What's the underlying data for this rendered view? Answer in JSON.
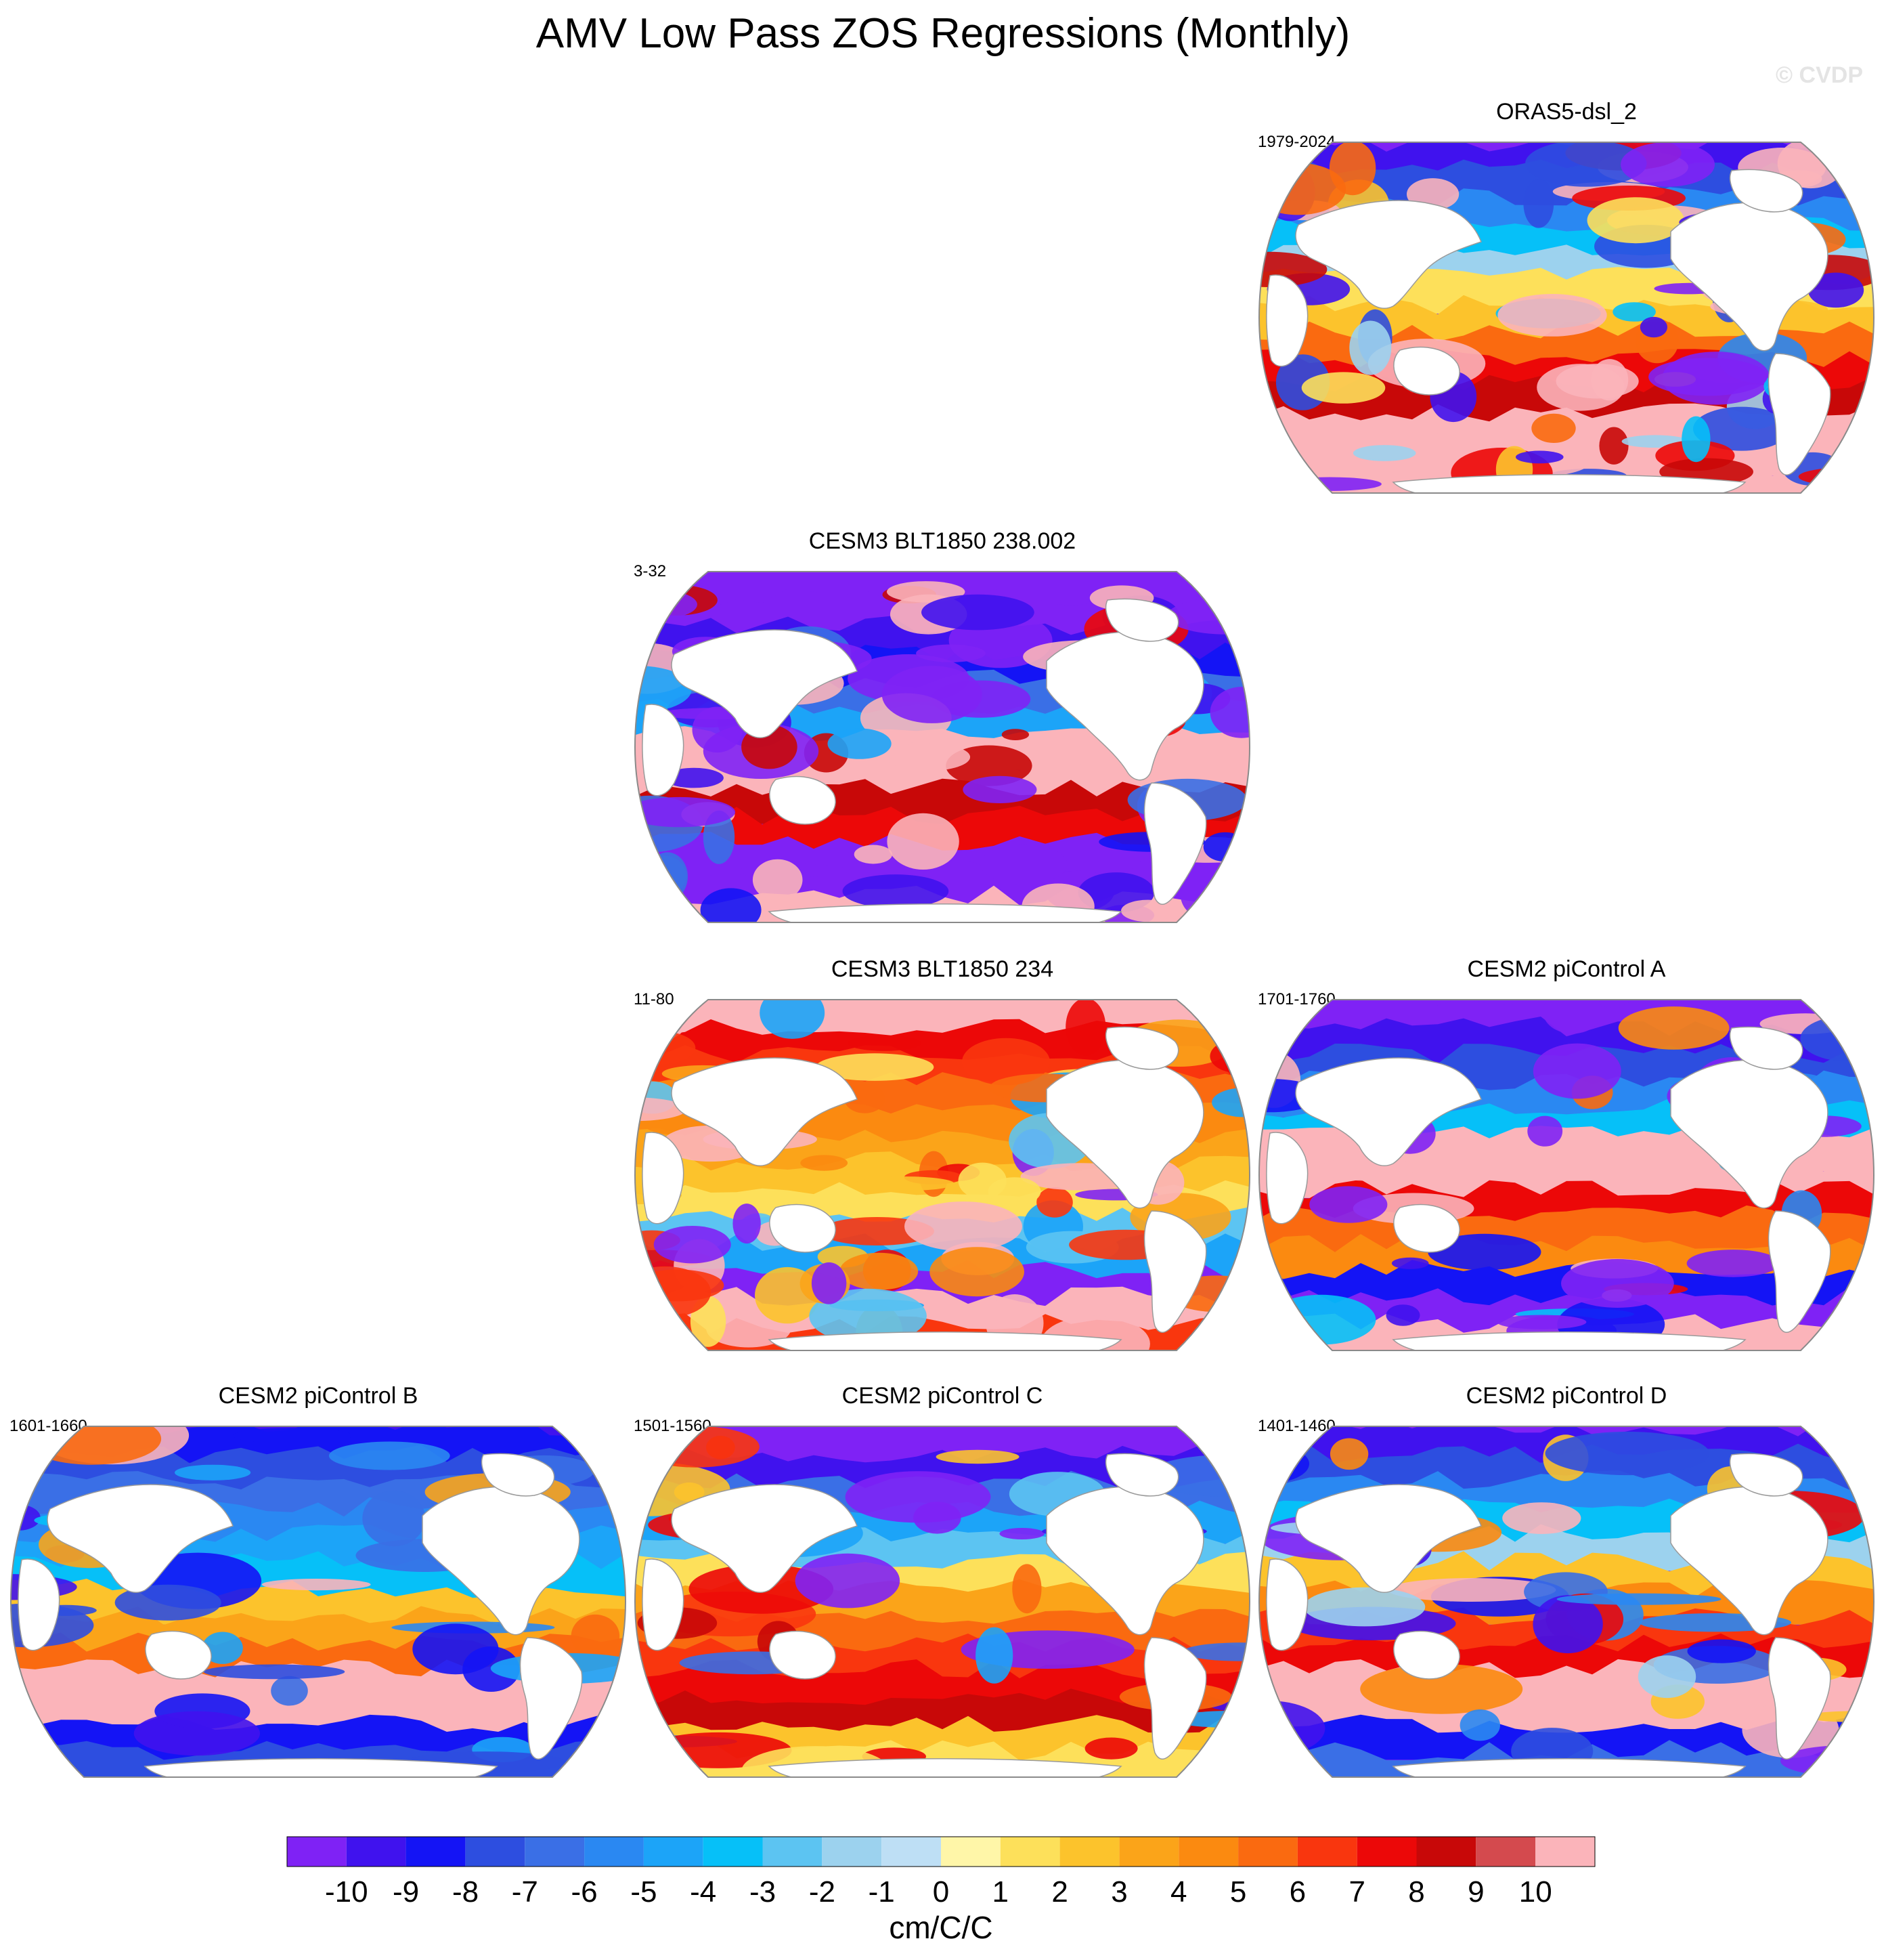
{
  "title": "AMV Low Pass ZOS Regressions (Monthly)",
  "watermark": "© CVDP",
  "panels": [
    {
      "title": "ORAS5-dsl_2",
      "period": "1979-2024",
      "style": "noisy"
    },
    {
      "title": "CESM3 BLT1850 238.002",
      "period": "3-32",
      "style": "strong-neg"
    },
    {
      "title": "CESM3 BLT1850 234",
      "period": "11-80",
      "style": "warm"
    },
    {
      "title": "CESM2 piControl A",
      "period": "1701-1760",
      "style": "mixed"
    },
    {
      "title": "CESM2 piControl B",
      "period": "1601-1660",
      "style": "smooth-blue"
    },
    {
      "title": "CESM2 piControl C",
      "period": "1501-1560",
      "style": "smooth-warm"
    },
    {
      "title": "CESM2 piControl D",
      "period": "1401-1460",
      "style": "smooth-mixed"
    }
  ],
  "colorbar": {
    "unit": "cm/C/C",
    "labels": [
      "-10",
      "-9",
      "-8",
      "-7",
      "-6",
      "-5",
      "-4",
      "-3",
      "-2",
      "-1",
      "0",
      "1",
      "2",
      "3",
      "4",
      "5",
      "6",
      "7",
      "8",
      "9",
      "10"
    ],
    "colors": [
      "#7f22f5",
      "#4012ee",
      "#1414f5",
      "#2d4ee0",
      "#3a6fe6",
      "#2a88f2",
      "#1ca4f8",
      "#06c0f8",
      "#5cc4f2",
      "#9cd2ee",
      "#bedff5",
      "#fff6a8",
      "#fde05a",
      "#fcc32c",
      "#fba419",
      "#fb8a10",
      "#fa6a10",
      "#f9360e",
      "#ec0808",
      "#c80808",
      "#d44a4e",
      "#fbb4ba"
    ]
  }
}
